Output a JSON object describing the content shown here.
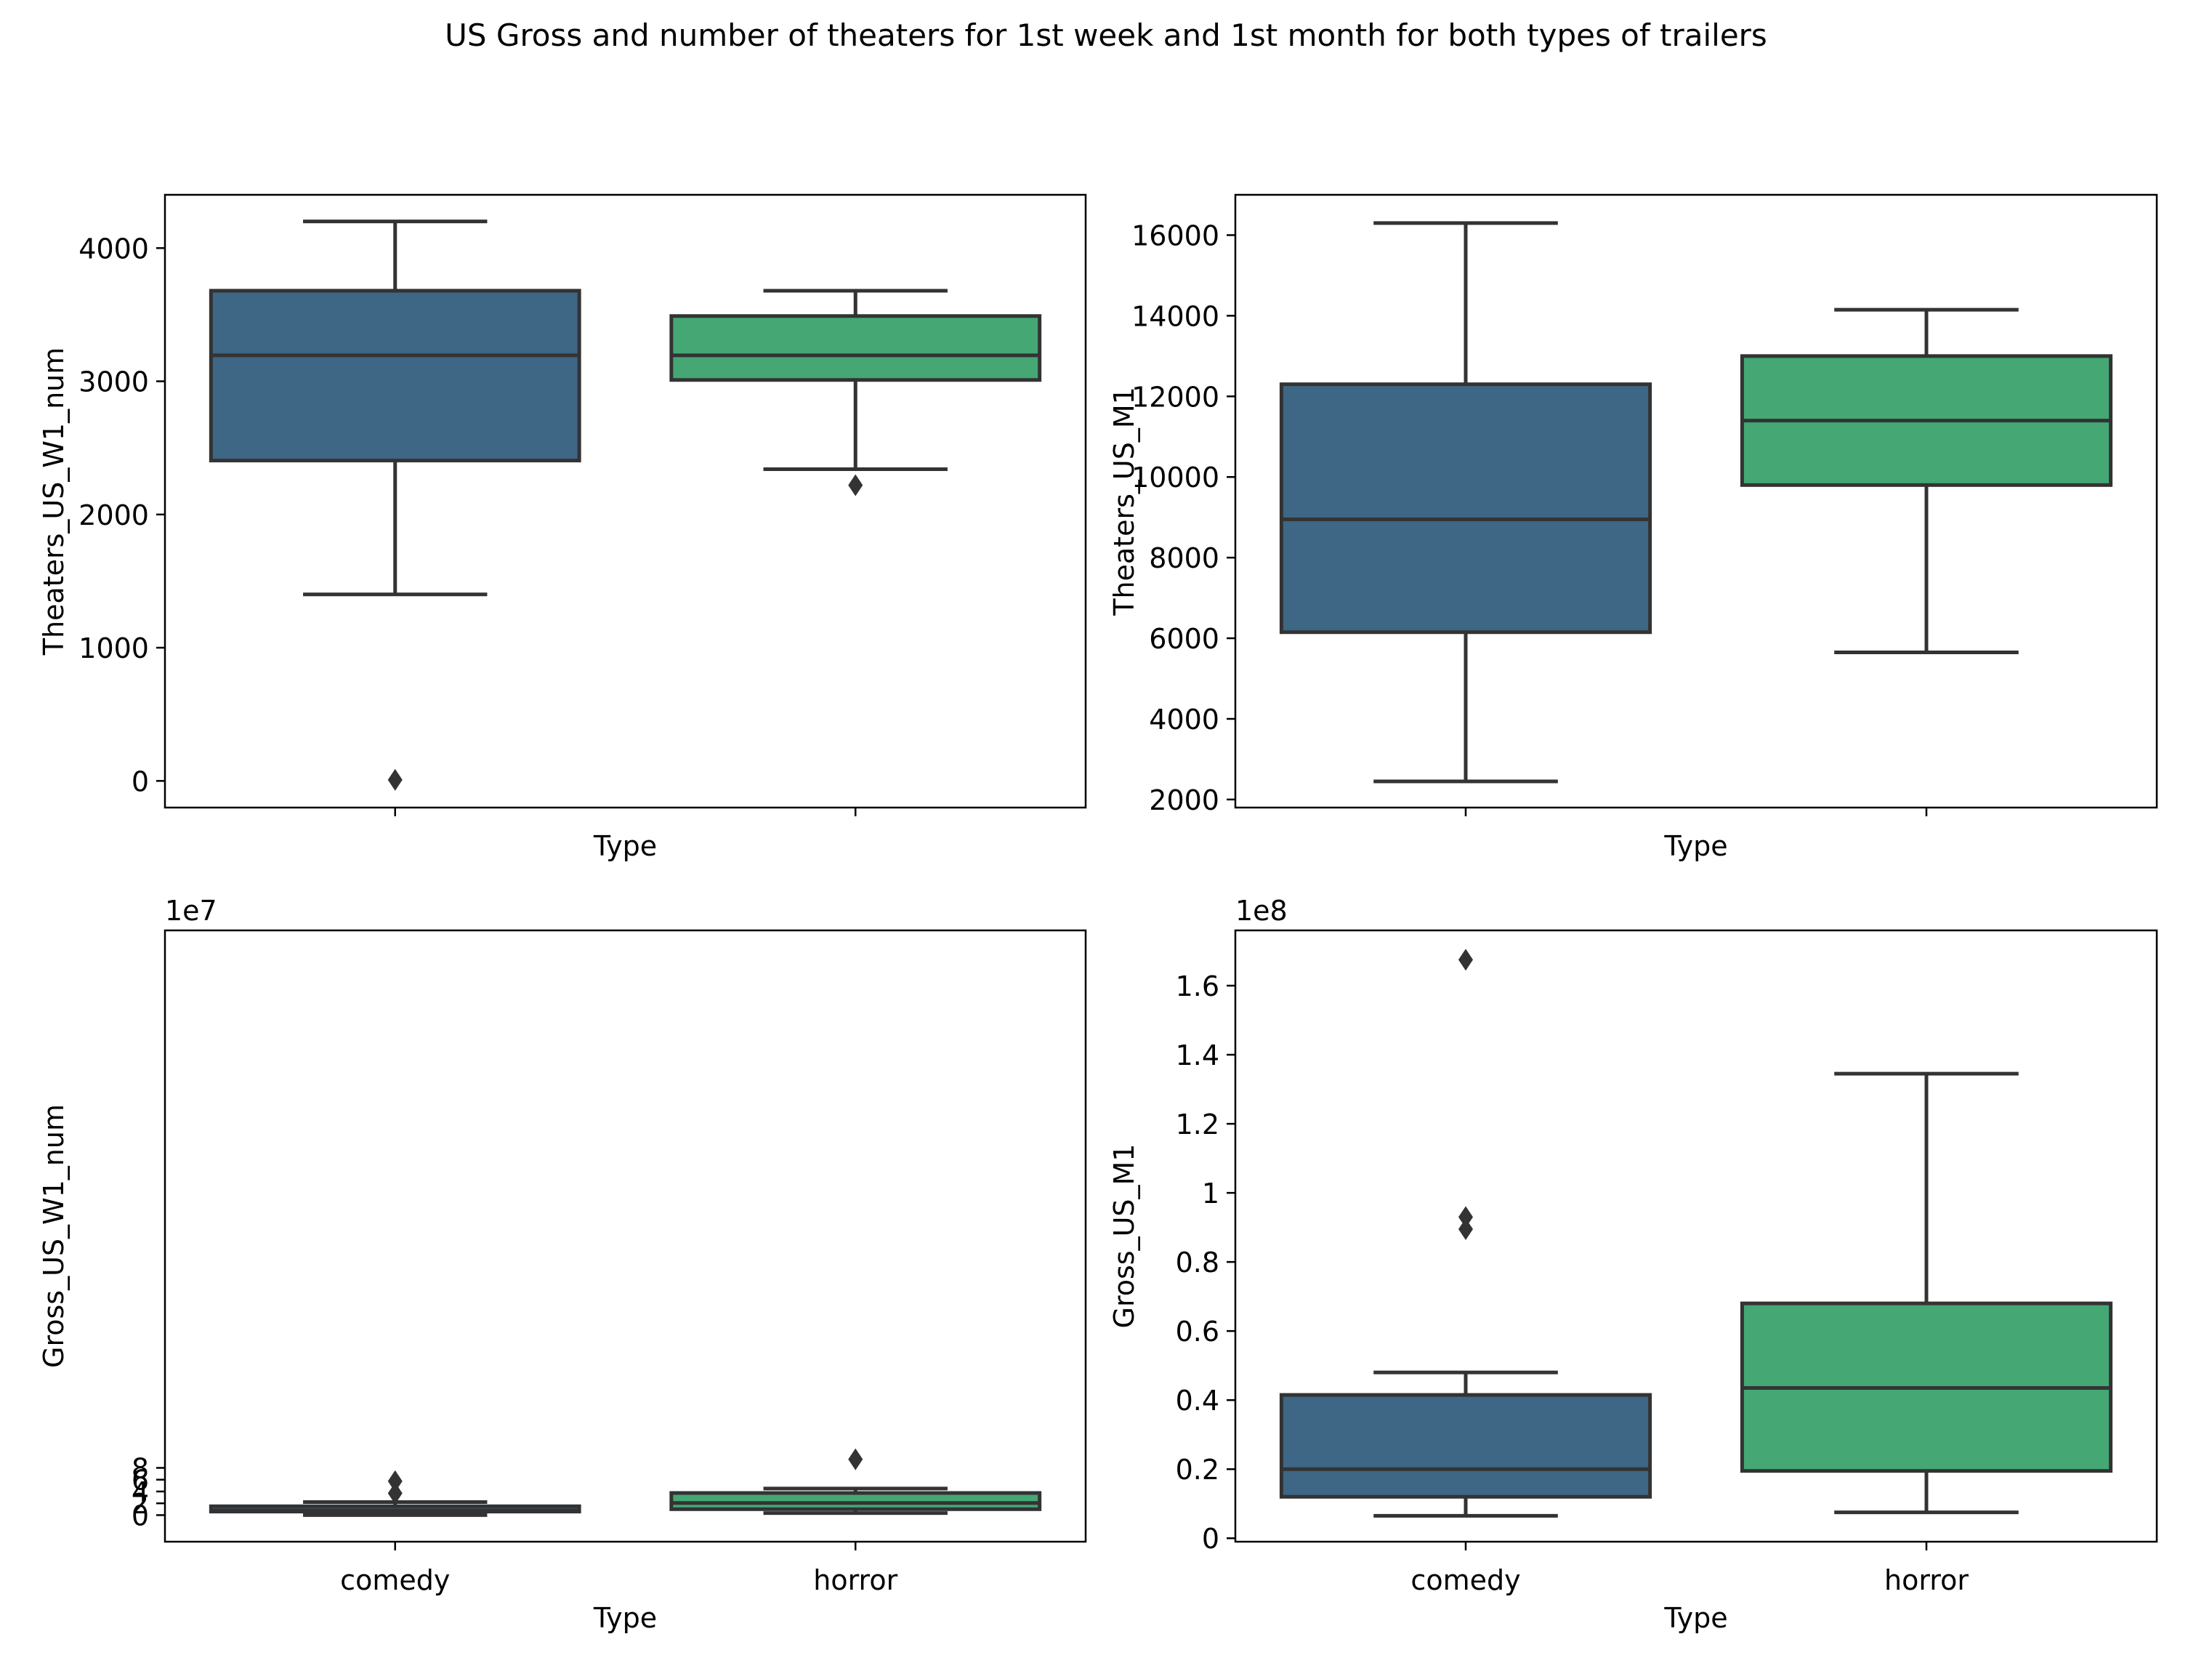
{
  "title": "US Gross and number of theaters for 1st week and 1st month for both types of trailers",
  "colors": {
    "comedy": "#3e6685",
    "horror": "#44a774",
    "edge": "#333333"
  },
  "chart_data": [
    {
      "id": "p1",
      "type": "box",
      "categories": [
        "comedy",
        "horror"
      ],
      "xlabel": "Type",
      "ylabel": "Theaters_US_W1_num",
      "offset_label": "",
      "show_xtick_labels": false,
      "ylim": [
        -200,
        4400
      ],
      "yticks": [
        0,
        1000,
        2000,
        3000,
        4000
      ],
      "scale": 1,
      "boxes": [
        {
          "name": "comedy",
          "whislo": 1400,
          "q1": 2405,
          "med": 3195,
          "q3": 3680,
          "whishi": 4200,
          "fliers": [
            8
          ]
        },
        {
          "name": "horror",
          "whislo": 2340,
          "q1": 3010,
          "med": 3195,
          "q3": 3490,
          "whishi": 3680,
          "fliers": [
            2220
          ]
        }
      ]
    },
    {
      "id": "p2",
      "type": "box",
      "categories": [
        "comedy",
        "horror"
      ],
      "xlabel": "Type",
      "ylabel": "Theaters_US_M1",
      "offset_label": "",
      "show_xtick_labels": false,
      "ylim": [
        1800,
        17000
      ],
      "yticks": [
        2000,
        4000,
        6000,
        8000,
        10000,
        12000,
        14000,
        16000
      ],
      "scale": 1,
      "boxes": [
        {
          "name": "comedy",
          "whislo": 2450,
          "q1": 6150,
          "med": 8950,
          "q3": 12300,
          "whishi": 16300,
          "fliers": []
        },
        {
          "name": "horror",
          "whislo": 5650,
          "q1": 9800,
          "med": 11400,
          "q3": 13000,
          "whishi": 14150,
          "fliers": []
        }
      ]
    },
    {
      "id": "p3",
      "type": "box",
      "categories": [
        "comedy",
        "horror"
      ],
      "xlabel": "Type",
      "ylabel": "Gross_US_W1_num",
      "offset_label": "1e7",
      "show_xtick_labels": true,
      "ylim": [
        -4.5,
        99
      ],
      "yticks": [
        0,
        2,
        4,
        6,
        8
      ],
      "scale": 10,
      "boxes": [
        {
          "name": "comedy",
          "whislo": 0.0,
          "q1": 0.6,
          "med": 0.8,
          "q3": 1.5,
          "whishi": 2.2,
          "fliers": [
            3.7,
            5.75
          ]
        },
        {
          "name": "horror",
          "whislo": 0.35,
          "q1": 1.0,
          "med": 2.05,
          "q3": 3.75,
          "whishi": 4.5,
          "fliers": [
            9.45
          ]
        }
      ]
    },
    {
      "id": "p4",
      "type": "box",
      "categories": [
        "comedy",
        "horror"
      ],
      "xlabel": "Type",
      "ylabel": "Gross_US_M1",
      "offset_label": "1e8",
      "show_xtick_labels": true,
      "ylim": [
        -0.01,
        1.76
      ],
      "yticks": [
        0.0,
        0.2,
        0.4,
        0.6,
        0.8,
        1.0,
        1.2,
        1.4,
        1.6
      ],
      "scale": 1,
      "boxes": [
        {
          "name": "comedy",
          "whislo": 0.065,
          "q1": 0.12,
          "med": 0.2,
          "q3": 0.415,
          "whishi": 0.48,
          "fliers": [
            0.895,
            0.93,
            1.675
          ]
        },
        {
          "name": "horror",
          "whislo": 0.075,
          "q1": 0.195,
          "med": 0.435,
          "q3": 0.68,
          "whishi": 1.345,
          "fliers": []
        }
      ]
    }
  ]
}
